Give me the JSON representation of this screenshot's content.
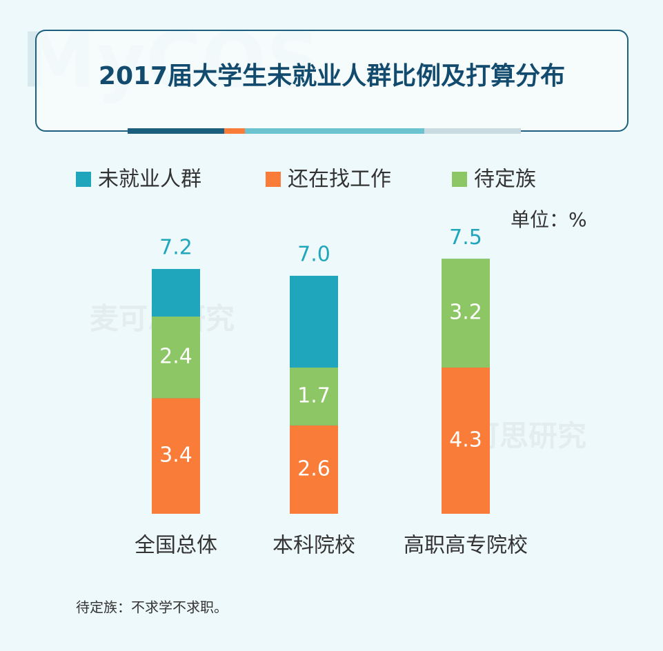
{
  "chart_data": {
    "type": "bar",
    "title": "2017届大学生未就业人群比例及打算分布",
    "unit": "单位：%",
    "note": "待定族：不求学不求职。",
    "watermark": [
      "MyCOS",
      "麦可思研究"
    ],
    "categories": [
      "全国总体",
      "本科院校",
      "高职高专院校"
    ],
    "series": [
      {
        "name": "未就业人群",
        "color": "#1fa6bc",
        "values": [
          7.2,
          7.0,
          7.5
        ],
        "value_labels": [
          "7.2",
          "7.0",
          "7.5"
        ]
      },
      {
        "name": "还在找工作",
        "color": "#f97c38",
        "values": [
          3.4,
          2.6,
          4.3
        ]
      },
      {
        "name": "待定族",
        "color": "#8dc765",
        "values": [
          2.4,
          1.7,
          3.2
        ]
      }
    ]
  }
}
